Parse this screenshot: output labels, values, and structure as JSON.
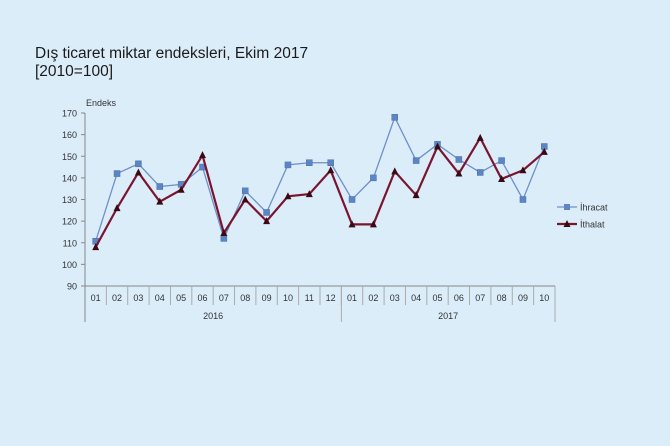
{
  "chart_data": {
    "type": "line",
    "title": "Dış ticaret miktar endeksleri, Ekim 2017",
    "subtitle": "[2010=100]",
    "ylabel": "Endeks",
    "ylim": [
      90,
      170
    ],
    "yticks": [
      90,
      100,
      110,
      120,
      130,
      140,
      150,
      160,
      170
    ],
    "grid": false,
    "legend": "right",
    "categories": [
      "01",
      "02",
      "03",
      "04",
      "05",
      "06",
      "07",
      "08",
      "09",
      "10",
      "11",
      "12",
      "01",
      "02",
      "03",
      "04",
      "05",
      "06",
      "07",
      "08",
      "09",
      "10"
    ],
    "groups": [
      {
        "label": "2016",
        "count": 12
      },
      {
        "label": "2017",
        "count": 10
      }
    ],
    "series": [
      {
        "name": "İhracat",
        "color": "#6f8fc8",
        "marker": "square",
        "values": [
          110.7,
          142,
          146.5,
          136,
          137,
          145,
          112,
          134,
          124,
          146,
          147,
          147,
          130,
          140,
          168,
          148,
          155.5,
          148.5,
          142.5,
          148,
          130,
          154.5
        ]
      },
      {
        "name": "İthalat",
        "color": "#7a1530",
        "marker": "triangle",
        "values": [
          108,
          126,
          142.5,
          129,
          134.5,
          150.5,
          114.5,
          130,
          120,
          131.5,
          132.5,
          143.5,
          118.5,
          118.5,
          143,
          132,
          154.5,
          142,
          158.5,
          139.5,
          143.5,
          152
        ]
      }
    ]
  }
}
